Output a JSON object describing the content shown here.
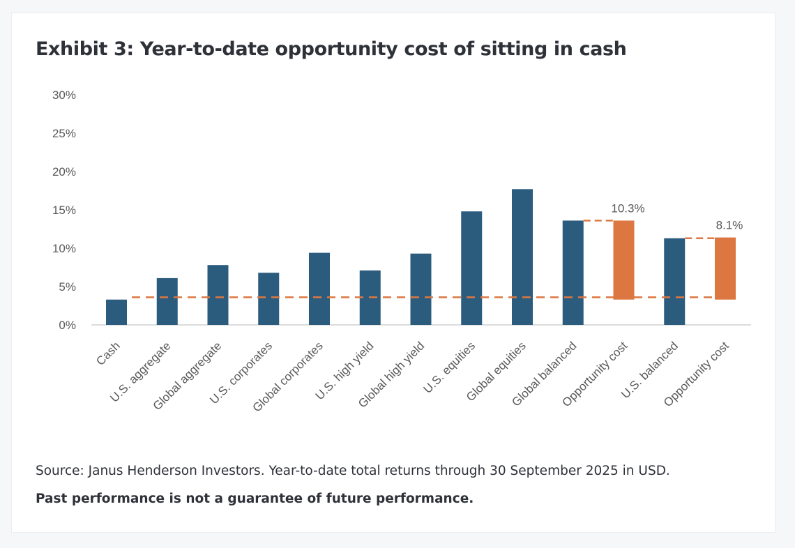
{
  "exhibit": {
    "title": "Exhibit 3: Year-to-date opportunity cost of sitting in cash",
    "source": "Source: Janus Henderson Investors. Year-to-date total returns through 30 September 2025 in USD.",
    "disclaimer": "Past performance is not a guarantee of future performance."
  },
  "chart_data": {
    "type": "bar",
    "title": "",
    "xlabel": "",
    "ylabel": "",
    "ylim": [
      0,
      30
    ],
    "yticks": [
      "0%",
      "5%",
      "10%",
      "15%",
      "20%",
      "25%",
      "30%"
    ],
    "grid": false,
    "legend": "none",
    "categories": [
      "Cash",
      "U.S. aggregate",
      "Global aggregate",
      "U.S. corporates",
      "Global corporates",
      "U.S. high yield",
      "Global high yield",
      "U.S. equities",
      "Global equities",
      "Global balanced",
      "Opportunity cost",
      "U.S. balanced",
      "Opportunity cost"
    ],
    "values": [
      3.3,
      6.1,
      7.8,
      6.8,
      9.4,
      7.1,
      9.3,
      14.8,
      17.7,
      13.6,
      10.3,
      11.3,
      8.1
    ],
    "floating_base": [
      0,
      0,
      0,
      0,
      0,
      0,
      0,
      0,
      0,
      0,
      3.3,
      0,
      3.3
    ],
    "bar_type": [
      "return",
      "return",
      "return",
      "return",
      "return",
      "return",
      "return",
      "return",
      "return",
      "return",
      "cost",
      "return",
      "cost"
    ],
    "data_labels": [
      "",
      "",
      "",
      "",
      "",
      "",
      "",
      "",
      "",
      "",
      "10.3%",
      "",
      "8.1%"
    ],
    "cash_reference_line": 3.6,
    "colors": {
      "return": "#2b5c7e",
      "cost": "#dc7741",
      "axis": "#d0d0d0",
      "text": "#595959"
    }
  }
}
